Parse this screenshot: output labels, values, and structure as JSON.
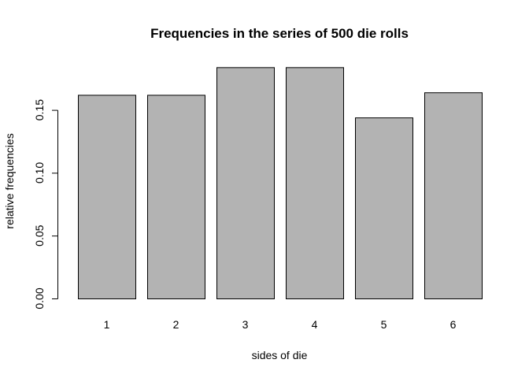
{
  "chart_data": {
    "type": "bar",
    "title": "Frequencies in the series of 500 die rolls",
    "xlabel": "sides of die",
    "ylabel": "relative frequencies",
    "categories": [
      "1",
      "2",
      "3",
      "4",
      "5",
      "6"
    ],
    "values": [
      0.162,
      0.162,
      0.184,
      0.184,
      0.144,
      0.164
    ],
    "ylim": [
      0,
      0.19
    ],
    "yticks": [
      0.0,
      0.05,
      0.1,
      0.15
    ],
    "ytick_labels": [
      "0.00",
      "0.05",
      "0.10",
      "0.15"
    ],
    "grid": false,
    "bar_color": "#b3b3b3",
    "bar_edge_color": "#000000"
  }
}
